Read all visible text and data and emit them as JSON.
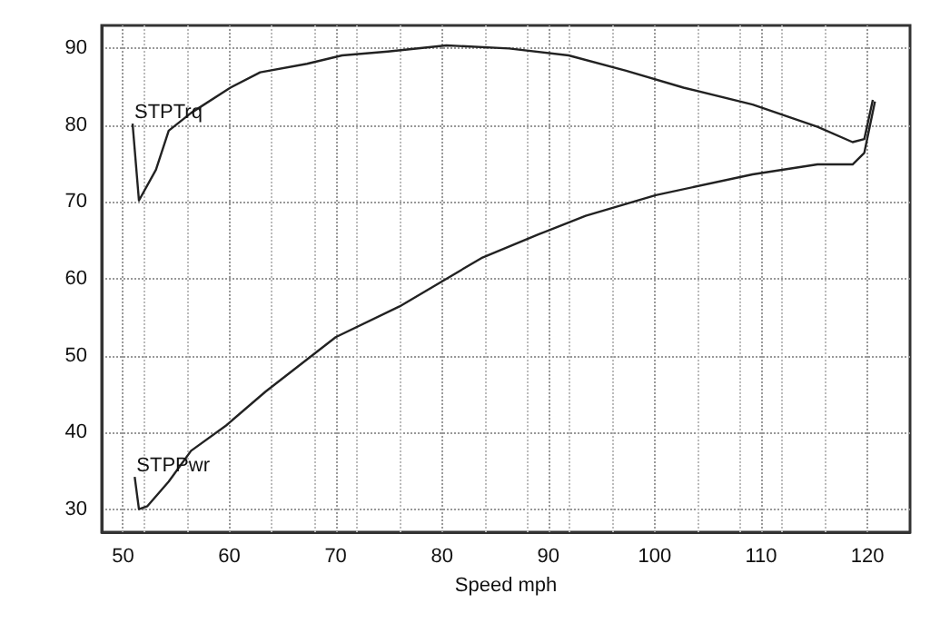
{
  "chart_data": {
    "type": "line",
    "xlabel": "Speed mph",
    "xlim": [
      48,
      124
    ],
    "xticks": [
      50,
      60,
      70,
      80,
      90,
      100,
      110,
      120
    ],
    "ylim": [
      27,
      93
    ],
    "yticks": [
      30,
      40,
      50,
      60,
      70,
      80,
      90
    ],
    "grid": true,
    "legend": false,
    "marker": "none",
    "line_style": "solid",
    "series": [
      {
        "name": "STPTrq",
        "color": "#222222",
        "x": [
          50.9,
          51.5,
          53.1,
          54.3,
          56.4,
          60.1,
          62.9,
          67.3,
          70.6,
          74.9,
          80.4,
          86.3,
          91.9,
          97.3,
          102.7,
          109.2,
          115.3,
          118.6,
          119.7,
          120.5
        ],
        "values": [
          80.2,
          70.2,
          74.2,
          79.3,
          81.6,
          84.9,
          86.9,
          88,
          89.1,
          89.6,
          90.4,
          90,
          89.1,
          87.1,
          84.9,
          82.7,
          79.8,
          77.8,
          78.2,
          83.3
        ]
      },
      {
        "name": "STPPwr",
        "color": "#222222",
        "x": [
          51.1,
          51.5,
          52.3,
          54.3,
          56.4,
          59.7,
          63.4,
          70,
          76,
          83.7,
          89.1,
          93.5,
          100.1,
          109.2,
          115.3,
          118.6,
          119.7,
          120.7
        ],
        "values": [
          34.2,
          30,
          30.4,
          33.6,
          37.6,
          40.9,
          45.3,
          52.4,
          56.4,
          62.7,
          65.8,
          68.2,
          70.9,
          73.6,
          74.9,
          74.9,
          76.4,
          83.1
        ]
      }
    ]
  }
}
